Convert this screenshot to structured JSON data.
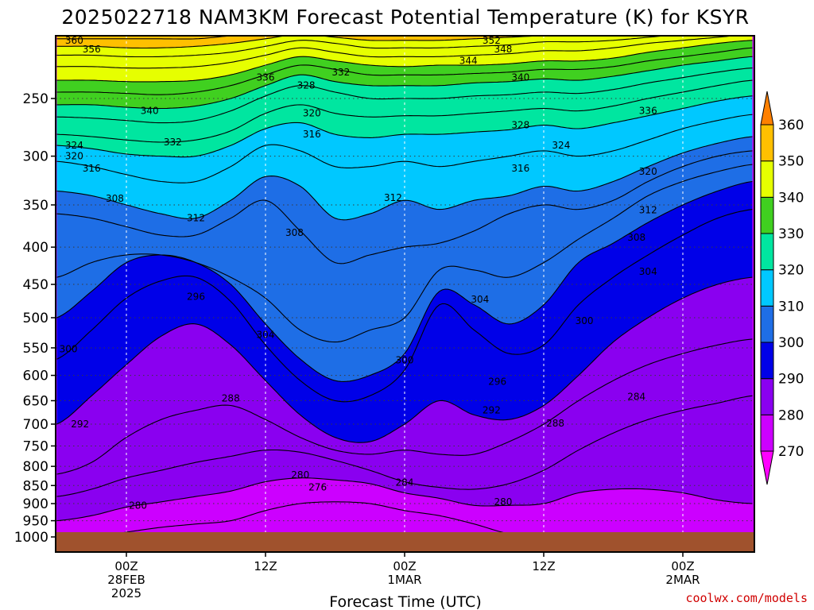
{
  "chart_data": {
    "type": "heatmap",
    "title": "2025022718 NAM3KM Forecast Potential Temperature (K) for KSYR",
    "xlabel": "Forecast Time (UTC)",
    "ylabel": "",
    "credit": "coolwx.com/models",
    "y_axis": {
      "scale": "log-pressure",
      "units": "hPa",
      "range": [
        1000,
        200
      ],
      "ticks": [
        "250",
        "300",
        "350",
        "400",
        "450",
        "500",
        "550",
        "600",
        "650",
        "700",
        "750",
        "800",
        "850",
        "900",
        "950",
        "1000"
      ]
    },
    "x_axis": {
      "range_hours": [
        -6,
        54
      ],
      "ticks": [
        {
          "hour": 0,
          "line1": "00Z",
          "line2": "28FEB",
          "line3": "2025"
        },
        {
          "hour": 12,
          "line1": "12Z",
          "line2": "",
          "line3": ""
        },
        {
          "hour": 24,
          "line1": "00Z",
          "line2": "1MAR",
          "line3": ""
        },
        {
          "hour": 36,
          "line1": "12Z",
          "line2": "",
          "line3": ""
        },
        {
          "hour": 48,
          "line1": "00Z",
          "line2": "2MAR",
          "line3": ""
        }
      ]
    },
    "grid": true,
    "legend": "colorbar-right",
    "colorbar": {
      "ticks": [
        "270",
        "280",
        "290",
        "300",
        "310",
        "320",
        "330",
        "340",
        "350",
        "360"
      ],
      "bands": [
        {
          "min": 260,
          "max": 270,
          "color": "#ff00ff"
        },
        {
          "min": 270,
          "max": 280,
          "color": "#cc00ff"
        },
        {
          "min": 280,
          "max": 290,
          "color": "#8a00f0"
        },
        {
          "min": 290,
          "max": 300,
          "color": "#0000e8"
        },
        {
          "min": 300,
          "max": 310,
          "color": "#1e6ee6"
        },
        {
          "min": 310,
          "max": 320,
          "color": "#00c8ff"
        },
        {
          "min": 320,
          "max": 330,
          "color": "#00e6a0"
        },
        {
          "min": 330,
          "max": 340,
          "color": "#40d020"
        },
        {
          "min": 340,
          "max": 350,
          "color": "#e6ff00"
        },
        {
          "min": 350,
          "max": 360,
          "color": "#ffc000"
        },
        {
          "min": 360,
          "max": 370,
          "color": "#ff8000"
        }
      ]
    },
    "ground_color": "#a0522d",
    "anchor_hours": [
      -6,
      -3,
      0,
      3,
      6,
      9,
      12,
      15,
      18,
      21,
      24,
      27,
      30,
      33,
      36,
      39,
      42,
      45,
      48,
      51,
      54
    ],
    "isentropes": [
      {
        "theta": 276,
        "p": [
          1000,
          1000,
          985,
          970,
          960,
          950,
          920,
          900,
          895,
          900,
          920,
          935,
          960,
          990,
          1000,
          1000,
          1000,
          1000,
          1000,
          1000,
          1000
        ]
      },
      {
        "theta": 280,
        "p": [
          950,
          935,
          910,
          895,
          880,
          865,
          840,
          830,
          835,
          845,
          870,
          885,
          905,
          905,
          900,
          870,
          860,
          860,
          870,
          890,
          900
        ]
      },
      {
        "theta": 284,
        "p": [
          880,
          860,
          830,
          810,
          790,
          775,
          760,
          765,
          785,
          810,
          840,
          855,
          860,
          845,
          810,
          760,
          720,
          690,
          670,
          655,
          640
        ]
      },
      {
        "theta": 288,
        "p": [
          820,
          790,
          730,
          690,
          670,
          660,
          690,
          730,
          760,
          770,
          760,
          770,
          770,
          740,
          700,
          650,
          610,
          580,
          560,
          545,
          535
        ]
      },
      {
        "theta": 292,
        "p": [
          700,
          640,
          580,
          530,
          510,
          545,
          610,
          680,
          730,
          740,
          700,
          650,
          680,
          690,
          660,
          600,
          540,
          500,
          470,
          450,
          440
        ]
      },
      {
        "theta": 296,
        "p": [
          570,
          520,
          470,
          445,
          440,
          475,
          545,
          610,
          650,
          640,
          590,
          480,
          520,
          560,
          545,
          480,
          440,
          410,
          385,
          365,
          355
        ]
      },
      {
        "theta": 300,
        "p": [
          500,
          460,
          420,
          410,
          420,
          450,
          510,
          570,
          610,
          600,
          560,
          460,
          480,
          510,
          480,
          420,
          395,
          370,
          350,
          335,
          325
        ]
      },
      {
        "theta": 304,
        "p": [
          440,
          420,
          410,
          410,
          420,
          440,
          470,
          520,
          540,
          520,
          500,
          430,
          430,
          440,
          420,
          390,
          365,
          340,
          325,
          315,
          308
        ]
      },
      {
        "theta": 308,
        "p": [
          360,
          365,
          375,
          385,
          385,
          365,
          345,
          380,
          420,
          410,
          400,
          395,
          380,
          360,
          350,
          355,
          345,
          325,
          310,
          300,
          295
        ]
      },
      {
        "theta": 312,
        "p": [
          335,
          340,
          350,
          360,
          365,
          345,
          320,
          330,
          365,
          360,
          345,
          355,
          345,
          340,
          330,
          335,
          325,
          310,
          297,
          288,
          282
        ]
      },
      {
        "theta": 316,
        "p": [
          305,
          310,
          318,
          325,
          325,
          310,
          290,
          295,
          310,
          310,
          305,
          310,
          305,
          300,
          295,
          300,
          295,
          285,
          275,
          268,
          263
        ]
      },
      {
        "theta": 320,
        "p": [
          290,
          293,
          298,
          300,
          300,
          290,
          275,
          270,
          280,
          283,
          280,
          280,
          278,
          276,
          272,
          275,
          270,
          264,
          258,
          252,
          248
        ]
      },
      {
        "theta": 324,
        "p": [
          280,
          282,
          285,
          287,
          285,
          277,
          262,
          255,
          262,
          265,
          264,
          264,
          262,
          260,
          258,
          260,
          256,
          250,
          245,
          240,
          236
        ]
      },
      {
        "theta": 328,
        "p": [
          265,
          266,
          268,
          270,
          268,
          260,
          248,
          240,
          245,
          250,
          250,
          250,
          248,
          247,
          245,
          246,
          243,
          238,
          234,
          230,
          227
        ]
      },
      {
        "theta": 332,
        "p": [
          255,
          255,
          257,
          258,
          256,
          250,
          240,
          232,
          237,
          240,
          240,
          240,
          238,
          237,
          235,
          236,
          233,
          229,
          225,
          222,
          219
        ]
      },
      {
        "theta": 336,
        "p": [
          245,
          245,
          246,
          247,
          245,
          240,
          232,
          225,
          228,
          232,
          232,
          232,
          231,
          230,
          228,
          228,
          226,
          222,
          219,
          216,
          213
        ]
      },
      {
        "theta": 340,
        "p": [
          236,
          236,
          237,
          237,
          236,
          232,
          225,
          219,
          222,
          225,
          226,
          225,
          225,
          224,
          222,
          222,
          220,
          216,
          213,
          210,
          208
        ]
      },
      {
        "theta": 344,
        "p": [
          226,
          226,
          227,
          227,
          226,
          223,
          218,
          213,
          216,
          219,
          219,
          219,
          218,
          217,
          215,
          215,
          213,
          210,
          208,
          206,
          204
        ]
      },
      {
        "theta": 348,
        "p": [
          218,
          218,
          219,
          219,
          218,
          216,
          212,
          208,
          210,
          213,
          213,
          213,
          212,
          211,
          209,
          209,
          208,
          206,
          204,
          203,
          202
        ]
      },
      {
        "theta": 352,
        "p": [
          212,
          212,
          213,
          213,
          212,
          210,
          207,
          204,
          206,
          208,
          208,
          208,
          207,
          206,
          205,
          205,
          204,
          203,
          202,
          201,
          201
        ]
      },
      {
        "theta": 356,
        "p": [
          207,
          207,
          207,
          207,
          207,
          205,
          203,
          201,
          202,
          204,
          204,
          204,
          203,
          202,
          201,
          201,
          201,
          200,
          200,
          200,
          200
        ]
      },
      {
        "theta": 360,
        "p": [
          203,
          203,
          203,
          203,
          203,
          202,
          201,
          200,
          200,
          201,
          201,
          201,
          201,
          200,
          200,
          200,
          200,
          200,
          200,
          200,
          200
        ]
      }
    ],
    "contour_labels": [
      {
        "text": "360",
        "hour": -4.5,
        "p": 208
      },
      {
        "text": "356",
        "hour": -3.0,
        "p": 214
      },
      {
        "text": "352",
        "hour": 31.5,
        "p": 208
      },
      {
        "text": "348",
        "hour": 32.5,
        "p": 214
      },
      {
        "text": "344",
        "hour": 29.5,
        "p": 222
      },
      {
        "text": "340",
        "hour": 34.0,
        "p": 234
      },
      {
        "text": "336",
        "hour": 12.0,
        "p": 234
      },
      {
        "text": "332",
        "hour": 18.5,
        "p": 230
      },
      {
        "text": "328",
        "hour": 15.5,
        "p": 240
      },
      {
        "text": "340",
        "hour": 2.0,
        "p": 260
      },
      {
        "text": "336",
        "hour": 45.0,
        "p": 260
      },
      {
        "text": "320",
        "hour": 16.0,
        "p": 262
      },
      {
        "text": "328",
        "hour": 34.0,
        "p": 272
      },
      {
        "text": "316",
        "hour": 16.0,
        "p": 280
      },
      {
        "text": "332",
        "hour": 4.0,
        "p": 287
      },
      {
        "text": "324",
        "hour": 37.5,
        "p": 290
      },
      {
        "text": "324",
        "hour": -4.5,
        "p": 290
      },
      {
        "text": "320",
        "hour": -4.5,
        "p": 300
      },
      {
        "text": "316",
        "hour": -3.0,
        "p": 312
      },
      {
        "text": "316",
        "hour": 34.0,
        "p": 312
      },
      {
        "text": "320",
        "hour": 45.0,
        "p": 315
      },
      {
        "text": "308",
        "hour": -1.0,
        "p": 343
      },
      {
        "text": "312",
        "hour": 23.0,
        "p": 342
      },
      {
        "text": "312",
        "hour": 45.0,
        "p": 356
      },
      {
        "text": "312",
        "hour": 6.0,
        "p": 365
      },
      {
        "text": "308",
        "hour": 14.5,
        "p": 382
      },
      {
        "text": "308",
        "hour": 44.0,
        "p": 388
      },
      {
        "text": "304",
        "hour": 45.0,
        "p": 432
      },
      {
        "text": "296",
        "hour": 6.0,
        "p": 468
      },
      {
        "text": "304",
        "hour": 30.5,
        "p": 472
      },
      {
        "text": "300",
        "hour": 39.5,
        "p": 505
      },
      {
        "text": "304",
        "hour": 12.0,
        "p": 528
      },
      {
        "text": "300",
        "hour": -5.0,
        "p": 552
      },
      {
        "text": "300",
        "hour": 24.0,
        "p": 572
      },
      {
        "text": "296",
        "hour": 32.0,
        "p": 612
      },
      {
        "text": "288",
        "hour": 9.0,
        "p": 645
      },
      {
        "text": "284",
        "hour": 44.0,
        "p": 642
      },
      {
        "text": "292",
        "hour": 31.5,
        "p": 670
      },
      {
        "text": "288",
        "hour": 37.0,
        "p": 698
      },
      {
        "text": "292",
        "hour": -4.0,
        "p": 700
      },
      {
        "text": "280",
        "hour": 15.0,
        "p": 822
      },
      {
        "text": "276",
        "hour": 16.5,
        "p": 855
      },
      {
        "text": "284",
        "hour": 24.0,
        "p": 842
      },
      {
        "text": "280",
        "hour": 1.0,
        "p": 905
      },
      {
        "text": "280",
        "hour": 32.5,
        "p": 895
      }
    ]
  }
}
